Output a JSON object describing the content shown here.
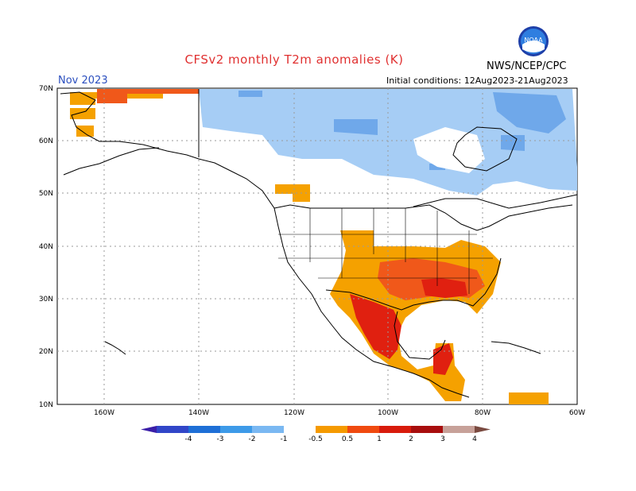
{
  "title": "CFSv2 monthly T2m anomalies (K)",
  "org": "NWS/NCEP/CPC",
  "logo_text": "NOAA",
  "period": "Nov 2023",
  "initial_conditions": "Initial conditions: 12Aug2023-21Aug2023",
  "axes": {
    "lat_labels": [
      "70N",
      "60N",
      "50N",
      "40N",
      "30N",
      "20N",
      "10N"
    ],
    "lon_labels": [
      "160W",
      "140W",
      "120W",
      "100W",
      "80W",
      "60W"
    ]
  },
  "colorbar": {
    "labels": [
      "-4",
      "-3",
      "-2",
      "-1",
      "-0.5",
      "0.5",
      "1",
      "2",
      "3",
      "4"
    ],
    "colors": [
      "#3b1ea8",
      "#3146c8",
      "#1e6fd6",
      "#3d9ae8",
      "#7ab8f2",
      "#ffffff",
      "#f59a00",
      "#f04a10",
      "#d81b0c",
      "#a80e0e",
      "#c7a199",
      "#7a4a40"
    ]
  },
  "colors": {
    "cold_light": "#a6cdf5",
    "cold_mid": "#6fa8ea",
    "warm_light": "#f5a100",
    "warm_mid": "#f0581a",
    "warm_strong": "#e02010",
    "warm_deep": "#b01010"
  }
}
